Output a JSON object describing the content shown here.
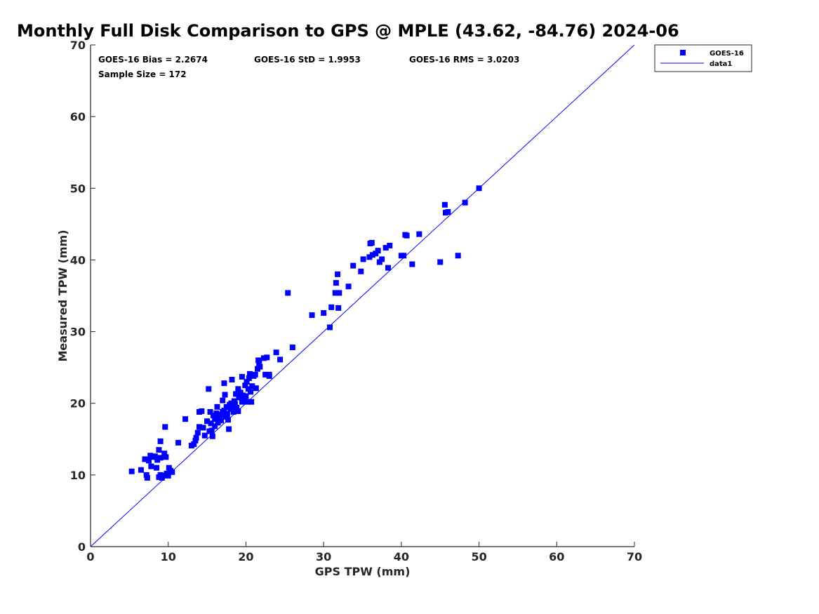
{
  "colors": {
    "marker": "#0000ff",
    "line": "#0000ff",
    "axis": "#262626",
    "background": "#ffffff"
  },
  "stats": {
    "bias": "GOES-16 Bias = 2.2674",
    "std": "GOES-16 StD = 1.9953",
    "rms": "GOES-16 RMS = 3.0203",
    "sample": "Sample Size = 172"
  },
  "chart_data": {
    "type": "scatter",
    "title": "Monthly Full Disk Comparison to GPS @ MPLE (43.62, -84.76) 2024-06",
    "xlabel": "GPS TPW (mm)",
    "ylabel": "Measured TPW (mm)",
    "xlim": [
      0,
      70
    ],
    "ylim": [
      0,
      70
    ],
    "xticks": [
      0,
      10,
      20,
      30,
      40,
      50,
      60,
      70
    ],
    "yticks": [
      0,
      10,
      20,
      30,
      40,
      50,
      60,
      70
    ],
    "grid": false,
    "legend_position": "top-right outside",
    "legend": [
      "GOES-16",
      "data1"
    ],
    "series": [
      {
        "name": "GOES-16",
        "marker": "square",
        "points": [
          [
            5.3,
            10.5
          ],
          [
            6.5,
            10.7
          ],
          [
            7.0,
            12.2
          ],
          [
            7.2,
            10.0
          ],
          [
            7.3,
            9.6
          ],
          [
            7.5,
            12.0
          ],
          [
            7.7,
            12.7
          ],
          [
            7.8,
            11.2
          ],
          [
            8.0,
            12.5
          ],
          [
            8.3,
            12.6
          ],
          [
            8.5,
            11.0
          ],
          [
            8.6,
            12.1
          ],
          [
            8.8,
            13.5
          ],
          [
            8.8,
            9.7
          ],
          [
            9.0,
            14.7
          ],
          [
            9.0,
            10.0
          ],
          [
            9.0,
            12.4
          ],
          [
            9.2,
            9.6
          ],
          [
            9.3,
            9.9
          ],
          [
            9.5,
            13.0
          ],
          [
            9.6,
            16.7
          ],
          [
            9.7,
            12.5
          ],
          [
            9.8,
            10.2
          ],
          [
            10.0,
            9.9
          ],
          [
            10.1,
            11.0
          ],
          [
            10.3,
            10.6
          ],
          [
            10.5,
            10.4
          ],
          [
            11.3,
            14.5
          ],
          [
            12.2,
            17.8
          ],
          [
            13.0,
            14.1
          ],
          [
            13.3,
            14.3
          ],
          [
            13.5,
            14.8
          ],
          [
            13.6,
            15.2
          ],
          [
            13.8,
            15.9
          ],
          [
            14.0,
            16.7
          ],
          [
            14.0,
            18.8
          ],
          [
            14.3,
            18.9
          ],
          [
            14.5,
            16.6
          ],
          [
            14.7,
            15.5
          ],
          [
            15.0,
            17.5
          ],
          [
            15.2,
            22.0
          ],
          [
            15.3,
            16.1
          ],
          [
            15.4,
            18.8
          ],
          [
            15.5,
            17.2
          ],
          [
            15.6,
            16.2
          ],
          [
            15.7,
            15.4
          ],
          [
            15.8,
            18.3
          ],
          [
            16.0,
            17.8
          ],
          [
            16.0,
            16.8
          ],
          [
            16.2,
            18.6
          ],
          [
            16.3,
            19.5
          ],
          [
            16.4,
            17.3
          ],
          [
            16.5,
            18.0
          ],
          [
            16.7,
            18.4
          ],
          [
            16.8,
            17.6
          ],
          [
            17.0,
            20.4
          ],
          [
            17.0,
            18.8
          ],
          [
            17.2,
            22.8
          ],
          [
            17.2,
            19.0
          ],
          [
            17.3,
            21.2
          ],
          [
            17.4,
            18.1
          ],
          [
            17.5,
            19.5
          ],
          [
            17.6,
            18.5
          ],
          [
            17.7,
            17.7
          ],
          [
            17.8,
            16.4
          ],
          [
            17.9,
            19.8
          ],
          [
            18.0,
            19.2
          ],
          [
            18.1,
            20.0
          ],
          [
            18.2,
            23.3
          ],
          [
            18.3,
            19.6
          ],
          [
            18.4,
            18.8
          ],
          [
            18.5,
            20.3
          ],
          [
            18.6,
            19.9
          ],
          [
            18.7,
            21.3
          ],
          [
            18.8,
            19.4
          ],
          [
            19.0,
            22.0
          ],
          [
            19.0,
            18.9
          ],
          [
            19.1,
            20.8
          ],
          [
            19.3,
            21.5
          ],
          [
            19.5,
            23.7
          ],
          [
            19.5,
            20.2
          ],
          [
            19.6,
            21.1
          ],
          [
            19.8,
            20.6
          ],
          [
            19.9,
            22.5
          ],
          [
            20.0,
            21.0
          ],
          [
            20.1,
            23.0
          ],
          [
            20.2,
            20.2
          ],
          [
            20.3,
            22.0
          ],
          [
            20.4,
            23.5
          ],
          [
            20.5,
            24.1
          ],
          [
            20.6,
            21.6
          ],
          [
            20.7,
            20.2
          ],
          [
            20.8,
            22.4
          ],
          [
            21.0,
            23.8
          ],
          [
            21.2,
            24.0
          ],
          [
            21.3,
            22.1
          ],
          [
            21.5,
            24.8
          ],
          [
            21.6,
            26.0
          ],
          [
            21.7,
            25.5
          ],
          [
            21.8,
            25.1
          ],
          [
            22.3,
            26.3
          ],
          [
            22.5,
            24.0
          ],
          [
            22.7,
            26.4
          ],
          [
            23.0,
            23.8
          ],
          [
            23.0,
            24.0
          ],
          [
            23.9,
            27.1
          ],
          [
            24.4,
            26.1
          ],
          [
            25.4,
            35.4
          ],
          [
            26.0,
            27.8
          ],
          [
            28.5,
            32.3
          ],
          [
            30.0,
            32.6
          ],
          [
            30.8,
            30.6
          ],
          [
            31.0,
            33.4
          ],
          [
            31.5,
            35.4
          ],
          [
            31.6,
            36.8
          ],
          [
            31.8,
            38.0
          ],
          [
            31.9,
            33.3
          ],
          [
            32.0,
            35.4
          ],
          [
            33.2,
            36.3
          ],
          [
            33.8,
            39.2
          ],
          [
            34.8,
            38.4
          ],
          [
            35.1,
            40.1
          ],
          [
            35.9,
            40.4
          ],
          [
            36.0,
            42.3
          ],
          [
            36.2,
            42.4
          ],
          [
            36.3,
            40.7
          ],
          [
            36.7,
            40.9
          ],
          [
            37.0,
            41.3
          ],
          [
            37.2,
            39.7
          ],
          [
            37.5,
            40.1
          ],
          [
            38.0,
            41.7
          ],
          [
            38.3,
            38.9
          ],
          [
            38.5,
            42.0
          ],
          [
            40.0,
            40.6
          ],
          [
            40.3,
            40.6
          ],
          [
            40.5,
            43.5
          ],
          [
            40.7,
            43.4
          ],
          [
            41.4,
            39.4
          ],
          [
            42.3,
            43.6
          ],
          [
            45.0,
            39.7
          ],
          [
            45.6,
            47.7
          ],
          [
            45.7,
            46.6
          ],
          [
            46.0,
            46.7
          ],
          [
            47.3,
            40.6
          ],
          [
            48.2,
            48.0
          ],
          [
            50.0,
            50.0
          ]
        ]
      },
      {
        "name": "data1",
        "type": "line",
        "points": [
          [
            0,
            0
          ],
          [
            70,
            70
          ]
        ]
      }
    ]
  }
}
